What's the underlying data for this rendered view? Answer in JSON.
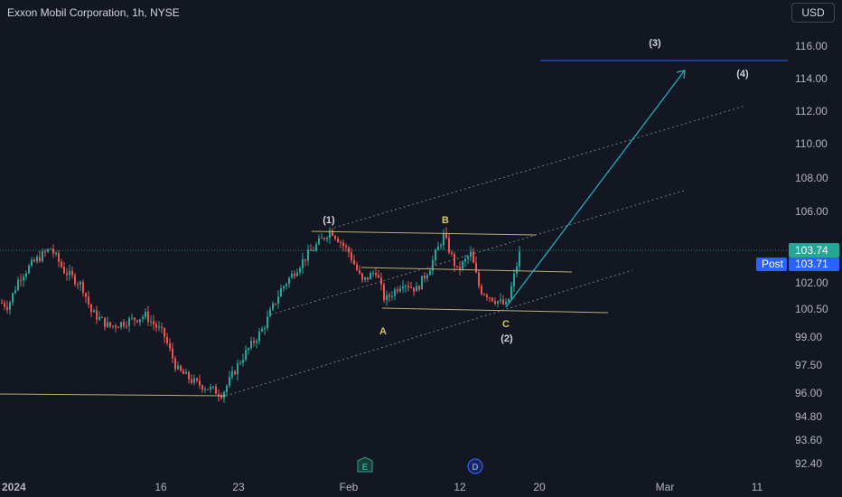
{
  "header": {
    "title": "Exxon Mobil Corporation, 1h, NYSE",
    "currency_button": "USD"
  },
  "colors": {
    "background": "#131722",
    "up": "#26a69a",
    "down": "#ef5350",
    "last_price": "#26a69a",
    "post": "#2962ff",
    "channel": "#b8b070",
    "target_line": "#2962ff",
    "arrow": "#22b5c8",
    "grid_dots": "#787b86"
  },
  "price_axis": {
    "labels": [
      "116.00",
      "114.00",
      "112.00",
      "110.00",
      "108.00",
      "106.00",
      "102.00",
      "100.50",
      "99.00",
      "97.50",
      "96.00",
      "94.80",
      "93.60",
      "92.40"
    ]
  },
  "price_tags": {
    "last": "103.74",
    "post_label": "Post",
    "post": "103.71"
  },
  "time_axis": {
    "labels": [
      "2024",
      "16",
      "23",
      "Feb",
      "12",
      "20",
      "Mar",
      "11"
    ]
  },
  "event_markers": [
    {
      "letter": "E"
    },
    {
      "letter": "D"
    }
  ],
  "wave_labels": [
    "(1)",
    "B",
    "A",
    "C",
    "(2)",
    "(3)",
    "(4)"
  ],
  "chart_data": {
    "type": "candlestick",
    "title": "Exxon Mobil Corporation, 1h, NYSE",
    "y_range": [
      92.0,
      117.5
    ],
    "last_price": 103.74,
    "post_price": 103.71,
    "key_points": [
      {
        "label": "(1)",
        "price": 105.0
      },
      {
        "label": "A",
        "price": 100.6
      },
      {
        "label": "B",
        "price": 104.8
      },
      {
        "label": "C",
        "price": 100.6
      },
      {
        "label": "(2)",
        "price": 100.6
      },
      {
        "label": "(3)",
        "price": 115.0
      }
    ],
    "trend_low": 96.0,
    "target_level": 115.0,
    "legend": "none",
    "grid": false
  }
}
